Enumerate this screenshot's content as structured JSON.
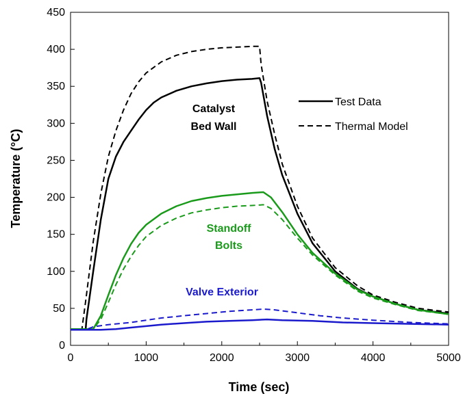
{
  "chart_data": {
    "type": "line",
    "xlabel": "Time (sec)",
    "ylabel": "Temperature (°C)",
    "xlim": [
      0,
      5000
    ],
    "ylim": [
      0,
      450
    ],
    "x_ticks": [
      0,
      1000,
      2000,
      3000,
      4000,
      5000
    ],
    "y_ticks": [
      0,
      50,
      100,
      150,
      200,
      250,
      300,
      350,
      400,
      450
    ],
    "grid": false,
    "legend": {
      "position": "top-right",
      "entries": [
        {
          "label": "Test Data",
          "style": "solid"
        },
        {
          "label": "Thermal Model",
          "style": "dashed"
        }
      ]
    },
    "annotations": [
      {
        "text": "Catalyst",
        "color": "#000000"
      },
      {
        "text": "Bed Wall",
        "color": "#000000"
      },
      {
        "text": "Standoff",
        "color": "#1a9a1a"
      },
      {
        "text": "Bolts",
        "color": "#1a9a1a"
      },
      {
        "text": "Valve Exterior",
        "color": "#1a1acc"
      }
    ],
    "series": [
      {
        "group": "Catalyst Bed Wall",
        "style": "solid",
        "color": "#000000",
        "x": [
          0,
          150,
          200,
          210,
          300,
          400,
          500,
          600,
          700,
          800,
          900,
          1000,
          1100,
          1200,
          1400,
          1600,
          1800,
          2000,
          2200,
          2400,
          2500,
          2520,
          2600,
          2700,
          2800,
          3000,
          3200,
          3500,
          3800,
          4000,
          4300,
          4600,
          5000
        ],
        "y": [
          22,
          22,
          22,
          35,
          100,
          170,
          225,
          255,
          275,
          290,
          305,
          318,
          328,
          335,
          344,
          350,
          354,
          357,
          359,
          360,
          361,
          355,
          310,
          265,
          230,
          178,
          138,
          100,
          76,
          66,
          56,
          48,
          43
        ]
      },
      {
        "group": "Catalyst Bed Wall",
        "style": "dashed",
        "color": "#000000",
        "x": [
          0,
          150,
          200,
          300,
          400,
          500,
          600,
          700,
          800,
          900,
          1000,
          1200,
          1400,
          1600,
          1800,
          2000,
          2200,
          2400,
          2500,
          2520,
          2600,
          2700,
          2800,
          3000,
          3200,
          3500,
          3800,
          4000,
          4300,
          4600,
          5000
        ],
        "y": [
          22,
          22,
          60,
          140,
          205,
          255,
          290,
          318,
          340,
          356,
          368,
          383,
          392,
          397,
          400,
          402,
          403,
          404,
          404,
          380,
          330,
          285,
          245,
          188,
          145,
          105,
          80,
          68,
          58,
          50,
          45
        ]
      },
      {
        "group": "Standoff Bolts",
        "style": "solid",
        "color": "#1a9a1a",
        "x": [
          0,
          300,
          400,
          500,
          600,
          700,
          800,
          900,
          1000,
          1200,
          1400,
          1600,
          1800,
          2000,
          2200,
          2400,
          2550,
          2650,
          2800,
          3000,
          3200,
          3500,
          3800,
          4000,
          4300,
          4600,
          5000
        ],
        "y": [
          22,
          22,
          40,
          68,
          95,
          118,
          137,
          152,
          163,
          178,
          188,
          195,
          199,
          202,
          204,
          206,
          207,
          200,
          180,
          150,
          125,
          97,
          75,
          66,
          56,
          48,
          42
        ]
      },
      {
        "group": "Standoff Bolts",
        "style": "dashed",
        "color": "#1a9a1a",
        "x": [
          0,
          300,
          400,
          500,
          600,
          700,
          800,
          900,
          1000,
          1200,
          1400,
          1600,
          1800,
          2000,
          2200,
          2400,
          2550,
          2650,
          2800,
          3000,
          3200,
          3500,
          3800,
          4000,
          4300,
          4600,
          5000
        ],
        "y": [
          22,
          22,
          35,
          58,
          82,
          103,
          120,
          135,
          147,
          162,
          172,
          179,
          183,
          186,
          188,
          189,
          190,
          185,
          170,
          145,
          122,
          95,
          73,
          64,
          55,
          47,
          42
        ]
      },
      {
        "group": "Valve Exterior",
        "style": "solid",
        "color": "#1a1acc",
        "x": [
          0,
          400,
          600,
          800,
          1000,
          1200,
          1500,
          1800,
          2100,
          2400,
          2600,
          2800,
          3200,
          3600,
          4000,
          4500,
          5000
        ],
        "y": [
          21,
          21,
          22,
          24,
          26,
          28,
          30,
          32,
          33,
          34,
          35,
          34,
          33,
          31,
          30,
          29,
          28
        ]
      },
      {
        "group": "Valve Exterior",
        "style": "dashed",
        "color": "#1a1acc",
        "x": [
          0,
          200,
          300,
          500,
          800,
          1000,
          1200,
          1500,
          1800,
          2100,
          2400,
          2550,
          2700,
          3000,
          3300,
          3600,
          4000,
          4500,
          5000
        ],
        "y": [
          21,
          21,
          25,
          28,
          31,
          34,
          37,
          40,
          43,
          46,
          48,
          49,
          48,
          44,
          40,
          37,
          34,
          31,
          29
        ]
      }
    ]
  }
}
